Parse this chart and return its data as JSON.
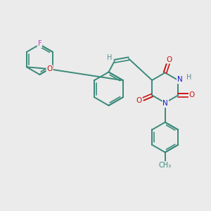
{
  "background_color": "#ebebeb",
  "atom_colors": {
    "C": "#3a8a7a",
    "N": "#1a1acc",
    "O": "#cc1111",
    "F": "#cc33cc",
    "H": "#5a8a8a"
  },
  "bond_color": "#3a8a7a",
  "line_width": 1.4,
  "figsize": [
    3.0,
    3.0
  ],
  "dpi": 100
}
